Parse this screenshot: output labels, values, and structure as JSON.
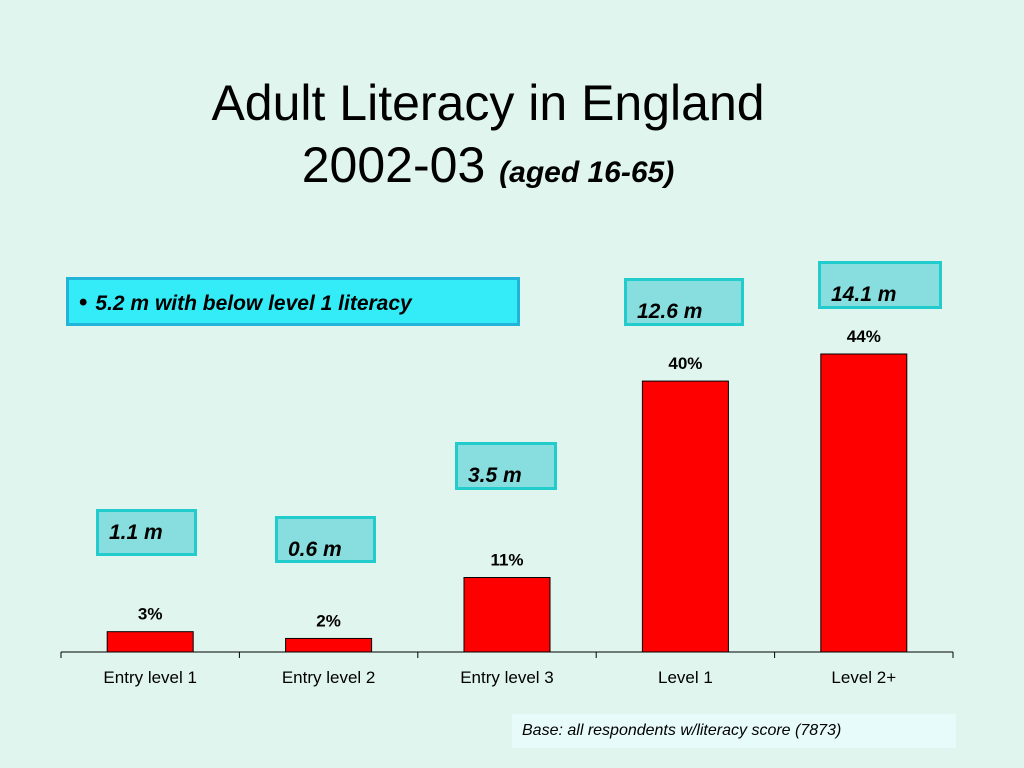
{
  "title_line1": "Adult Literacy in England",
  "title_line2": "2002-03",
  "title_sub": "(aged 16-65)",
  "callouts": {
    "below_level1": "5.2 m with below level 1 literacy",
    "entry1": "1.1 m",
    "entry2": "0.6 m",
    "entry3": "3.5 m",
    "level1": "12.6 m",
    "level2": "14.1 m"
  },
  "base_note": "Base: all respondents w/literacy score (7873)",
  "chart_data": {
    "type": "bar",
    "categories": [
      "Entry level 1",
      "Entry level 2",
      "Entry level 3",
      "Level 1",
      "Level 2+"
    ],
    "values": [
      3,
      2,
      11,
      40,
      44
    ],
    "data_labels": [
      "3%",
      "2%",
      "11%",
      "40%",
      "44%"
    ],
    "ylim": [
      0,
      44
    ],
    "bar_color": "#ff0000",
    "grid": false,
    "legend": "none"
  }
}
